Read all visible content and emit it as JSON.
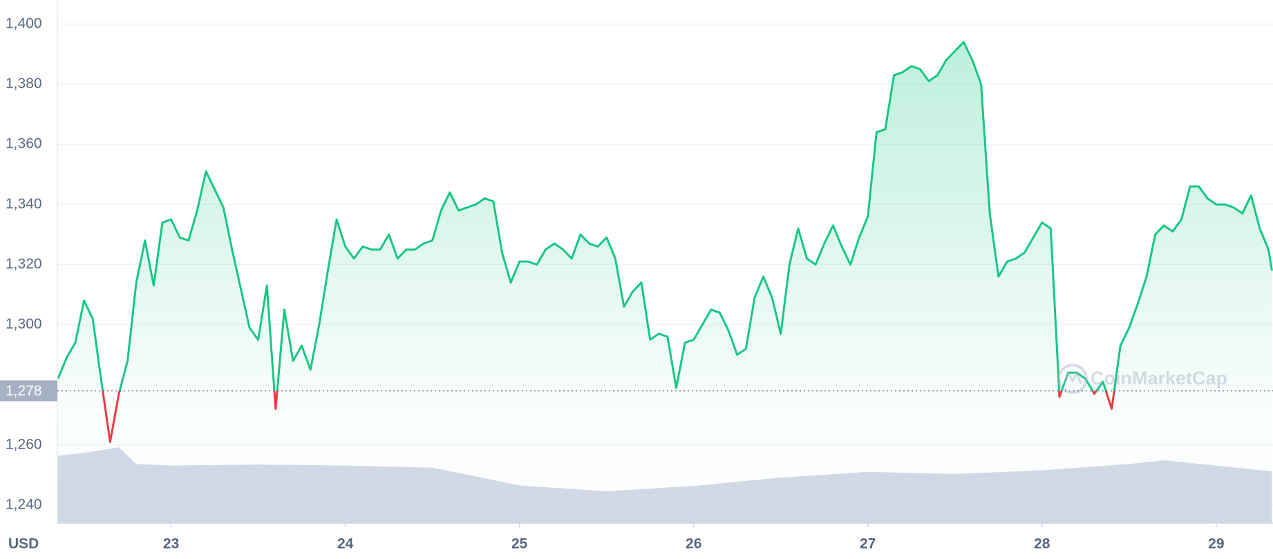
{
  "chart_data": {
    "type": "line",
    "xlim": [
      22.347,
      29.326
    ],
    "xticks": [
      23,
      24,
      25,
      26,
      27,
      28,
      29
    ],
    "ylim": [
      1234,
      1408
    ],
    "yticks": [
      {
        "value": 1240,
        "label": "1,240"
      },
      {
        "value": 1260,
        "label": "1,260"
      },
      {
        "value": 1300,
        "label": "1,300"
      },
      {
        "value": 1320,
        "label": "1,320"
      },
      {
        "value": 1340,
        "label": "1,340"
      },
      {
        "value": 1360,
        "label": "1,360"
      },
      {
        "value": 1380,
        "label": "1,380"
      },
      {
        "value": 1400,
        "label": "1,400"
      }
    ],
    "y2lim": [
      0,
      100
    ],
    "grid": true,
    "currency": "USD",
    "baseline": {
      "value": 1278,
      "label": "1,278"
    },
    "up_color": "#16c784",
    "down_color": "#ea3943",
    "watermark": "CoinMarketCap",
    "series": [
      {
        "color": "#16c784",
        "x": [
          22.35,
          22.4,
          22.45,
          22.5,
          22.55,
          22.6,
          22.65,
          22.7,
          22.75,
          22.8,
          22.85,
          22.9,
          22.95,
          23,
          23.05,
          23.1,
          23.15,
          23.2,
          23.25,
          23.3,
          23.35,
          23.4,
          23.45,
          23.5,
          23.55,
          23.6,
          23.65,
          23.7,
          23.75,
          23.8,
          23.85,
          23.9,
          23.95,
          24,
          24.05,
          24.1,
          24.15,
          24.2,
          24.25,
          24.3,
          24.35,
          24.4,
          24.45,
          24.5,
          24.55,
          24.6,
          24.65,
          24.7,
          24.75,
          24.8,
          24.85,
          24.9,
          24.95,
          25,
          25.05,
          25.1,
          25.15,
          25.2,
          25.25,
          25.3,
          25.35,
          25.4,
          25.45,
          25.5,
          25.55,
          25.6,
          25.65,
          25.7,
          25.75,
          25.8,
          25.85,
          25.9,
          25.95,
          26,
          26.05,
          26.1,
          26.15,
          26.2,
          26.25,
          26.3,
          26.35,
          26.4,
          26.45,
          26.5,
          26.55,
          26.6,
          26.65,
          26.7,
          26.75,
          26.8,
          26.85,
          26.9,
          26.95,
          27,
          27.05,
          27.1,
          27.15,
          27.2,
          27.25,
          27.3,
          27.35,
          27.4,
          27.45,
          27.5,
          27.55,
          27.6,
          27.65,
          27.7,
          27.75,
          27.8,
          27.85,
          27.9,
          27.95,
          28,
          28.05,
          28.1,
          28.15,
          28.2,
          28.25,
          28.3,
          28.35,
          28.4,
          28.45,
          28.5,
          28.55,
          28.6,
          28.65,
          28.7,
          28.75,
          28.8,
          28.85,
          28.9,
          28.95,
          29,
          29.05,
          29.1,
          29.15,
          29.2,
          29.25,
          29.3,
          29.32
        ],
        "values": [
          1282,
          1289,
          1294,
          1308,
          1302,
          1281,
          1261,
          1277,
          1288,
          1314,
          1328,
          1313,
          1334,
          1335,
          1329,
          1328,
          1338,
          1351,
          1345,
          1339,
          1325,
          1312,
          1299,
          1295,
          1313,
          1272,
          1305,
          1288,
          1293,
          1285,
          1300,
          1318,
          1335,
          1326,
          1322,
          1326,
          1325,
          1325,
          1330,
          1322,
          1325,
          1325,
          1327,
          1328,
          1338,
          1344,
          1338,
          1339,
          1340,
          1342,
          1341,
          1324,
          1314,
          1321,
          1321,
          1320,
          1325,
          1327,
          1325,
          1322,
          1330,
          1327,
          1326,
          1329,
          1322,
          1306,
          1311,
          1314,
          1295,
          1297,
          1296,
          1279,
          1294,
          1295,
          1300,
          1305,
          1304,
          1298,
          1290,
          1292,
          1309,
          1316,
          1309,
          1297,
          1320,
          1332,
          1322,
          1320,
          1327,
          1333,
          1326,
          1320,
          1329,
          1336,
          1364,
          1365,
          1383,
          1384,
          1386,
          1385,
          1381,
          1383,
          1388,
          1391,
          1394,
          1388,
          1380,
          1337,
          1316,
          1321,
          1322,
          1324,
          1329,
          1334,
          1332,
          1276,
          1284,
          1284,
          1282,
          1277,
          1281,
          1272,
          1293,
          1299,
          1307,
          1316,
          1330,
          1333,
          1331,
          1335,
          1346,
          1346,
          1342,
          1340,
          1340,
          1339,
          1337,
          1343,
          1332,
          1325,
          1318
        ]
      },
      {
        "color": "#cfd6e4",
        "axis": "y2",
        "x": [
          22.35,
          22.5,
          22.7,
          22.8,
          23,
          23.5,
          24,
          24.5,
          25,
          25.5,
          26,
          26.5,
          27,
          27.5,
          28,
          28.5,
          28.7,
          29,
          29.32
        ],
        "values": [
          12.9,
          13.4,
          14.5,
          11.3,
          11,
          11.2,
          11,
          10.6,
          7.2,
          6.1,
          7.1,
          8.7,
          9.8,
          9.4,
          10.1,
          11.3,
          12,
          11,
          9.9
        ]
      }
    ]
  }
}
